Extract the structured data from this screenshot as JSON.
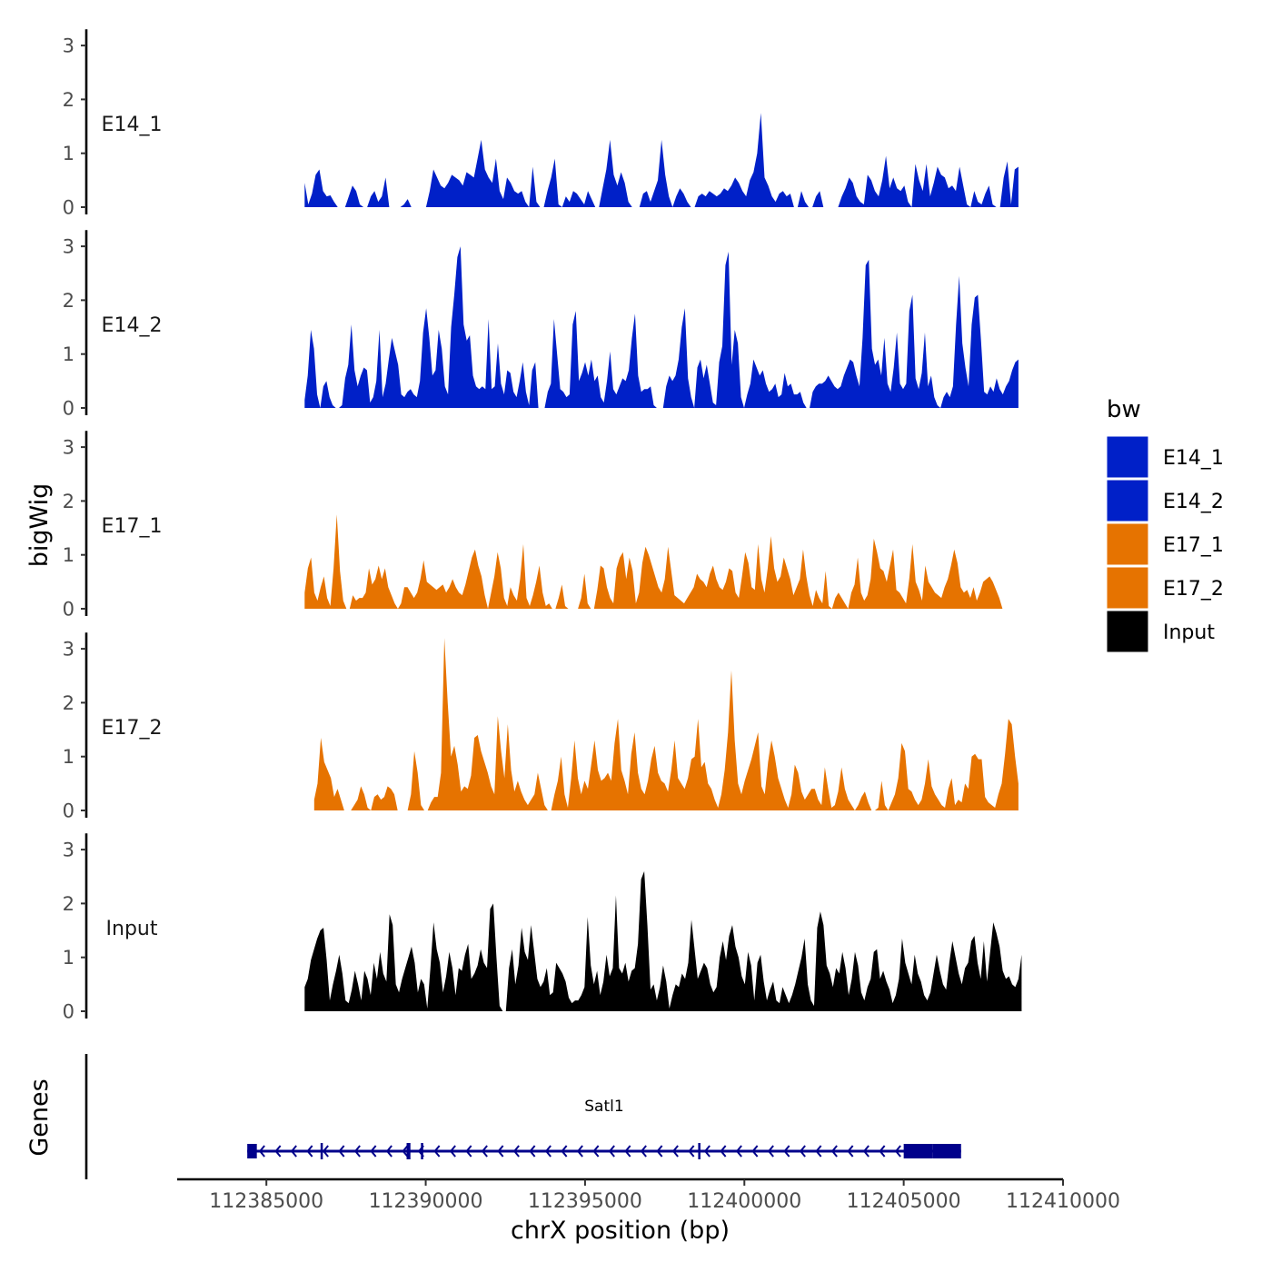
{
  "chart_data": {
    "type": "area",
    "title": "",
    "xlabel": "chrX position (bp)",
    "ylabel": "bigWig",
    "genes_label": "Genes",
    "xlim": [
      112382200,
      112410000
    ],
    "x_ticks": [
      112385000,
      112390000,
      112395000,
      112400000,
      112405000,
      112410000
    ],
    "x_tick_labels": [
      "112385000",
      "112390000",
      "112395000",
      "112400000",
      "112405000",
      "112410000"
    ],
    "ylim": [
      0,
      3.3
    ],
    "y_ticks": [
      0,
      1,
      2,
      3
    ],
    "y_tick_labels": [
      "0",
      "1",
      "2",
      "3"
    ],
    "legend": {
      "title": "bw",
      "position": "right",
      "entries": [
        {
          "label": "E14_1",
          "color": "#0020c8"
        },
        {
          "label": "E14_2",
          "color": "#0020c8"
        },
        {
          "label": "E17_1",
          "color": "#e67300"
        },
        {
          "label": "E17_2",
          "color": "#e67300"
        },
        {
          "label": "Input",
          "color": "#000000"
        }
      ]
    },
    "series": [
      {
        "name": "E14_1",
        "color": "#0020c8",
        "x_start": 112386200,
        "x_end": 112408600,
        "values": [
          0.45,
          0.05,
          0.25,
          0.6,
          0.7,
          0.3,
          0.2,
          0.22,
          0.1,
          0,
          0,
          0,
          0.2,
          0.4,
          0.3,
          0.05,
          0,
          0,
          0.2,
          0.3,
          0.1,
          0.2,
          0.55,
          0,
          0,
          0,
          0,
          0.05,
          0.15,
          0,
          0,
          0,
          0,
          0,
          0.3,
          0.7,
          0.55,
          0.4,
          0.35,
          0.45,
          0.6,
          0.55,
          0.5,
          0.4,
          0.65,
          0.6,
          0.55,
          0.9,
          1.25,
          0.7,
          0.55,
          0.45,
          0.9,
          0.3,
          0.15,
          0.55,
          0.45,
          0.3,
          0.25,
          0.3,
          0.1,
          0,
          0.75,
          0.1,
          0,
          0,
          0.3,
          0.55,
          0.9,
          0.05,
          0,
          0.2,
          0.1,
          0.3,
          0.25,
          0.15,
          0.05,
          0.3,
          0.15,
          0,
          0,
          0.35,
          0.7,
          1.25,
          0.6,
          0.4,
          0.65,
          0.45,
          0.1,
          0,
          0,
          0,
          0.25,
          0.3,
          0.1,
          0.3,
          0.5,
          1.25,
          0.6,
          0.2,
          0,
          0.2,
          0.35,
          0.25,
          0.1,
          0,
          0,
          0.2,
          0.25,
          0.2,
          0.3,
          0.25,
          0.2,
          0.25,
          0.35,
          0.3,
          0.4,
          0.55,
          0.45,
          0.3,
          0.2,
          0.5,
          0.65,
          1.0,
          1.75,
          0.55,
          0.4,
          0.2,
          0.1,
          0.25,
          0.3,
          0.2,
          0.25,
          0,
          0,
          0.3,
          0.1,
          0,
          0,
          0.2,
          0.3,
          0,
          0,
          0,
          0,
          0,
          0.2,
          0.35,
          0.55,
          0.45,
          0.2,
          0.1,
          0.05,
          0.6,
          0.5,
          0.3,
          0.2,
          0.5,
          0.95,
          0.35,
          0.55,
          0.35,
          0.3,
          0.4,
          0.1,
          0,
          0.8,
          0.5,
          0.3,
          0.8,
          0.2,
          0.45,
          0.75,
          0.6,
          0.55,
          0.35,
          0.4,
          0.3,
          0.75,
          0.4,
          0.05,
          0,
          0.3,
          0.1,
          0.05,
          0.25,
          0.4,
          0.05,
          0,
          0,
          0.55,
          0.85,
          0.05,
          0.7,
          0.75
        ]
      },
      {
        "name": "E14_2",
        "color": "#0020c8",
        "x_start": 112386200,
        "x_end": 112408600,
        "values": [
          0.15,
          0.6,
          1.45,
          1.1,
          0.25,
          0,
          0.4,
          0.5,
          0.2,
          0.05,
          0,
          0,
          0.05,
          0.55,
          0.8,
          1.55,
          0.7,
          0.4,
          0.6,
          0.75,
          0.7,
          0.1,
          0.2,
          0.5,
          1.45,
          0.2,
          0.45,
          0.9,
          1.3,
          1.05,
          0.8,
          0.25,
          0.2,
          0.3,
          0.35,
          0.25,
          0.2,
          0.5,
          1.4,
          1.85,
          1.3,
          0.6,
          0.7,
          1.45,
          1.1,
          0.4,
          0.25,
          1.5,
          2.1,
          2.8,
          3.0,
          1.55,
          1.25,
          1.35,
          0.6,
          0.4,
          0.35,
          0.4,
          0.35,
          1.65,
          0.35,
          0.4,
          1.2,
          0.45,
          0.25,
          0.7,
          0.65,
          0.3,
          0.2,
          0.5,
          0.85,
          0.3,
          0.05,
          0.7,
          0.85,
          0,
          0,
          0,
          0.3,
          0.45,
          1.65,
          1.0,
          0.35,
          0.3,
          0.2,
          0.25,
          1.55,
          1.8,
          0.5,
          0.65,
          0.85,
          0.6,
          0.9,
          0.5,
          0.6,
          0.2,
          0.1,
          0.5,
          1.05,
          0.35,
          0.25,
          0.4,
          0.55,
          0.5,
          0.7,
          1.3,
          1.75,
          0.6,
          0.3,
          0.35,
          0.35,
          0.4,
          0.05,
          0,
          0,
          0,
          0.4,
          0.6,
          0.5,
          0.6,
          0.9,
          1.5,
          1.85,
          0.55,
          0.2,
          0,
          0.75,
          0.9,
          0.55,
          0.8,
          0.45,
          0.1,
          0.05,
          0.85,
          1.15,
          2.65,
          2.9,
          0.8,
          1.45,
          1.2,
          0.2,
          0,
          0.25,
          0.45,
          0.9,
          0.75,
          0.6,
          0.7,
          0.45,
          0.3,
          0.35,
          0.45,
          0.2,
          0.25,
          0.65,
          0.4,
          0.45,
          0.25,
          0.25,
          0.3,
          0.1,
          0,
          0,
          0.3,
          0.4,
          0.45,
          0.45,
          0.5,
          0.6,
          0.5,
          0.4,
          0.35,
          0.4,
          0.6,
          0.75,
          0.9,
          0.85,
          0.6,
          0.4,
          1.3,
          2.65,
          2.75,
          1.1,
          0.8,
          0.9,
          0.6,
          1.3,
          0.45,
          0.3,
          0.75,
          1.4,
          0.45,
          0.35,
          0.45,
          1.8,
          2.1,
          0.55,
          0.35,
          0.65,
          1.4,
          0.4,
          0.6,
          0.2,
          0.05,
          0,
          0.2,
          0.3,
          0.2,
          0.4,
          1.55,
          2.45,
          1.2,
          0.75,
          0.4,
          1.55,
          2.05,
          2.1,
          1.25,
          0.3,
          0.25,
          0.4,
          0.3,
          0.55,
          0.35,
          0.25,
          0.4,
          0.5,
          0.7,
          0.85,
          0.9
        ]
      },
      {
        "name": "E17_1",
        "color": "#e67300",
        "x_start": 112386200,
        "x_end": 112408100,
        "values": [
          0.3,
          0.75,
          0.95,
          0.3,
          0.15,
          0.4,
          0.6,
          0.2,
          0.05,
          0.75,
          1.75,
          0.7,
          0.15,
          0,
          0,
          0.25,
          0.15,
          0.2,
          0.2,
          0.3,
          0.75,
          0.45,
          0.55,
          0.8,
          0.55,
          0.75,
          0.4,
          0.25,
          0.1,
          0,
          0.1,
          0.4,
          0.4,
          0.3,
          0.2,
          0.3,
          0.55,
          0.9,
          0.5,
          0.45,
          0.4,
          0.35,
          0.4,
          0.45,
          0.3,
          0.4,
          0.55,
          0.4,
          0.3,
          0.25,
          0.45,
          0.7,
          0.95,
          1.1,
          0.8,
          0.6,
          0.25,
          0,
          0.3,
          0.6,
          1.05,
          0.75,
          0.2,
          0.05,
          0.4,
          0.25,
          0.15,
          0.55,
          1.2,
          0.2,
          0.05,
          0.25,
          0.5,
          0.8,
          0.3,
          0.05,
          0.1,
          0,
          0,
          0.2,
          0.45,
          0.05,
          0,
          0,
          0,
          0,
          0.2,
          0.65,
          0.1,
          0,
          0,
          0.35,
          0.8,
          0.75,
          0.4,
          0.2,
          0.1,
          0.75,
          0.95,
          1.05,
          0.55,
          0.95,
          0.7,
          0.1,
          0.3,
          0.85,
          1.15,
          1.0,
          0.8,
          0.6,
          0.4,
          0.3,
          0.55,
          1.15,
          0.7,
          0.25,
          0.2,
          0.15,
          0.1,
          0.2,
          0.3,
          0.4,
          0.65,
          0.55,
          0.5,
          0.4,
          0.65,
          0.8,
          0.55,
          0.4,
          0.35,
          0.5,
          0.75,
          0.7,
          0.3,
          0.2,
          0.6,
          1.05,
          0.85,
          0.4,
          0.35,
          1.2,
          0.55,
          0.3,
          0.75,
          1.35,
          0.75,
          0.5,
          0.6,
          0.95,
          0.75,
          0.55,
          0.25,
          0.4,
          0.55,
          1.1,
          0.6,
          0.25,
          0.05,
          0.35,
          0.2,
          0.1,
          0.7,
          0.05,
          0,
          0.2,
          0.3,
          0.2,
          0.1,
          0,
          0.3,
          0.45,
          0.95,
          0.3,
          0.15,
          0.25,
          0.55,
          1.3,
          1.05,
          0.75,
          0.7,
          0.5,
          0.8,
          1.1,
          0.35,
          0.3,
          0.2,
          0.1,
          0.55,
          1.2,
          0.5,
          0.35,
          0.15,
          0.8,
          0.5,
          0.4,
          0.3,
          0.25,
          0.2,
          0.4,
          0.55,
          0.8,
          1.1,
          0.85,
          0.4,
          0.3,
          0.35,
          0.2,
          0.4,
          0.15,
          0.3,
          0.5,
          0.55,
          0.6,
          0.5,
          0.35,
          0.2,
          0
        ]
      },
      {
        "name": "E17_2",
        "color": "#e67300",
        "x_start": 112386500,
        "x_end": 112408600,
        "values": [
          0.2,
          0.5,
          1.35,
          0.9,
          0.75,
          0.6,
          0.25,
          0.4,
          0.2,
          0,
          0,
          0,
          0.1,
          0.2,
          0.45,
          0.3,
          0.05,
          0,
          0.25,
          0.3,
          0.2,
          0.25,
          0.45,
          0.4,
          0.3,
          0,
          0,
          0,
          0,
          0.3,
          1.1,
          0.7,
          0.1,
          0,
          0,
          0.15,
          0.25,
          0.25,
          0.7,
          3.2,
          2.0,
          1.0,
          1.2,
          0.85,
          0.35,
          0.45,
          0.4,
          0.65,
          1.35,
          1.4,
          1.1,
          0.9,
          0.7,
          0.45,
          0.3,
          1.75,
          1.1,
          0.6,
          1.6,
          0.75,
          0.35,
          0.55,
          0.35,
          0.2,
          0.1,
          0.2,
          0.3,
          0.7,
          0.4,
          0.1,
          0,
          0,
          0.3,
          0.55,
          1.0,
          0.3,
          0.05,
          0.6,
          1.3,
          0.6,
          0.3,
          0.55,
          0.4,
          0.85,
          1.3,
          0.75,
          0.55,
          0.6,
          0.7,
          0.55,
          1.25,
          1.7,
          0.75,
          0.55,
          0.3,
          1.05,
          1.45,
          0.7,
          0.4,
          0.3,
          0.55,
          0.95,
          1.2,
          0.7,
          0.55,
          0.5,
          0.35,
          0.75,
          1.3,
          0.6,
          0.5,
          0.4,
          0.6,
          0.95,
          1.0,
          1.7,
          0.8,
          0.9,
          0.5,
          0.4,
          0.2,
          0.05,
          0.3,
          0.75,
          1.45,
          2.6,
          1.3,
          0.5,
          0.3,
          0.55,
          0.75,
          0.95,
          1.2,
          1.45,
          0.45,
          0.3,
          0.9,
          1.3,
          1.0,
          0.6,
          0.4,
          0.2,
          0.05,
          0.3,
          0.85,
          0.7,
          0.35,
          0.2,
          0.3,
          0.4,
          0.4,
          0.2,
          0.1,
          0.8,
          0.4,
          0.05,
          0.1,
          0.35,
          0.8,
          0.4,
          0.2,
          0.1,
          0,
          0.1,
          0.25,
          0.35,
          0.15,
          0,
          0,
          0.05,
          0.55,
          0.1,
          0,
          0.15,
          0.3,
          0.6,
          1.25,
          1.1,
          0.4,
          0.35,
          0.2,
          0.1,
          0.2,
          0.5,
          0.95,
          0.45,
          0.3,
          0.2,
          0.1,
          0.05,
          0.4,
          0.6,
          0.1,
          0.2,
          0.15,
          0.5,
          0.4,
          1.0,
          1.05,
          0.95,
          0.95,
          0.25,
          0.15,
          0.1,
          0.05,
          0.3,
          0.5,
          1.05,
          1.7,
          1.6,
          1.0,
          0.5
        ]
      },
      {
        "name": "Input",
        "color": "#000000",
        "x_start": 112386200,
        "x_end": 112408700,
        "values": [
          0.45,
          0.6,
          0.95,
          1.15,
          1.35,
          1.5,
          1.55,
          0.95,
          0.2,
          0.5,
          0.75,
          1.05,
          0.7,
          0.2,
          0.15,
          0.4,
          0.75,
          0.5,
          0.2,
          0.75,
          0.6,
          0.3,
          0.9,
          0.6,
          1.1,
          0.7,
          0.55,
          1.8,
          1.6,
          0.5,
          0.35,
          0.6,
          0.8,
          1.0,
          1.2,
          0.9,
          0.35,
          0.6,
          0.5,
          0.05,
          0.8,
          1.65,
          1.15,
          0.9,
          0.35,
          0.65,
          1.1,
          0.8,
          0.3,
          0.8,
          0.75,
          1.05,
          1.25,
          0.6,
          0.7,
          0.85,
          1.15,
          0.9,
          0.8,
          1.9,
          2.0,
          1.0,
          0.1,
          0,
          0,
          0.8,
          1.15,
          0.5,
          0.85,
          1.55,
          1.1,
          0.95,
          1.6,
          1.1,
          0.6,
          0.45,
          0.55,
          0.8,
          0.3,
          0.35,
          0.9,
          0.8,
          0.7,
          0.55,
          0.25,
          0.15,
          0.2,
          0.2,
          0.3,
          0.45,
          1.75,
          0.85,
          0.5,
          0.75,
          0.3,
          0.55,
          1.05,
          0.65,
          0.8,
          2.15,
          0.8,
          0.7,
          0.9,
          0.55,
          0.75,
          0.8,
          1.25,
          2.45,
          2.6,
          1.6,
          0.4,
          0.5,
          0.2,
          0.45,
          0.85,
          0.55,
          0.05,
          0.3,
          0.5,
          0.45,
          0.7,
          0.6,
          0.9,
          1.7,
          1.15,
          0.6,
          0.75,
          0.9,
          0.8,
          0.5,
          0.35,
          0.45,
          1.0,
          1.3,
          0.95,
          1.4,
          1.6,
          1.2,
          1.0,
          0.65,
          0.5,
          1.1,
          0.85,
          0.2,
          0.9,
          1.05,
          0.55,
          0.2,
          0.4,
          0.55,
          0.2,
          0.15,
          0.45,
          0.3,
          0.15,
          0.3,
          0.5,
          0.75,
          1.0,
          1.35,
          0.5,
          0.2,
          0.1,
          1.55,
          1.85,
          1.6,
          0.85,
          0.7,
          0.45,
          0.8,
          0.7,
          1.1,
          0.8,
          0.3,
          0.6,
          1.1,
          0.85,
          0.35,
          0.2,
          0.45,
          0.6,
          1.1,
          1.15,
          0.6,
          0.75,
          0.55,
          0.4,
          0.15,
          0.3,
          0.6,
          1.35,
          0.9,
          0.7,
          0.5,
          1.05,
          0.7,
          0.55,
          0.3,
          0.2,
          0.35,
          0.7,
          1.05,
          0.75,
          0.5,
          0.4,
          0.9,
          1.3,
          1.0,
          0.7,
          0.5,
          0.8,
          0.9,
          1.3,
          1.4,
          0.9,
          0.6,
          1.3,
          0.55,
          1.1,
          1.65,
          1.45,
          1.2,
          0.75,
          0.6,
          0.65,
          0.5,
          0.45,
          0.6,
          1.05
        ]
      }
    ],
    "gene": {
      "name": "Satl1",
      "x_start": 112384400,
      "x_end": 112406800,
      "strand": "-",
      "exons": [
        {
          "start": 112384400,
          "end": 112384700
        },
        {
          "start": 112386700,
          "end": 112386760
        },
        {
          "start": 112389400,
          "end": 112389520
        },
        {
          "start": 112389850,
          "end": 112389920
        },
        {
          "start": 112398550,
          "end": 112398610
        },
        {
          "start": 112405000,
          "end": 112405900
        },
        {
          "start": 112405900,
          "end": 112406800
        }
      ]
    }
  }
}
